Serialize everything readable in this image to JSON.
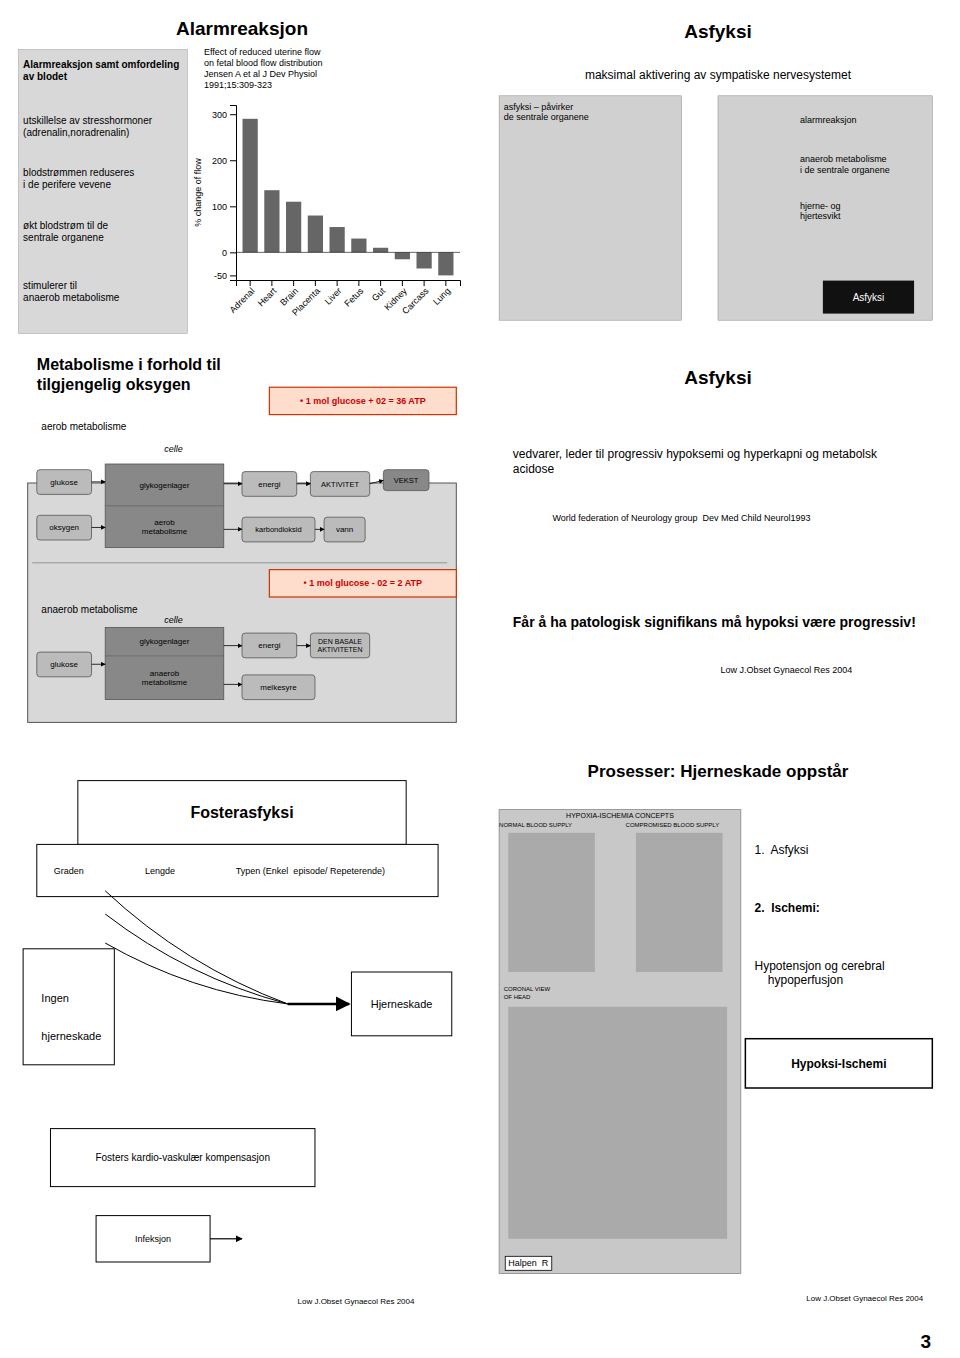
{
  "chart_data": {
    "type": "bar",
    "title": "Effect of reduced uterine flow\non fetal blood flow distribution\nJensen A et al J Dev Physiol\n1991;15:309-323",
    "ylabel": "% change of flow",
    "categories": [
      "Adrenal",
      "Heart",
      "Brain",
      "Placenta",
      "Liver",
      "Fetus",
      "Gut",
      "Kidney",
      "Carcass",
      "Lung"
    ],
    "values": [
      290,
      135,
      110,
      80,
      55,
      30,
      10,
      -15,
      -35,
      -50
    ],
    "color": "#666666",
    "ylim": [
      -60,
      320
    ],
    "yticks": [
      -50,
      0,
      100,
      200,
      300
    ],
    "grid": false,
    "annotations": [
      "Alarmreaksjon",
      "Alarmreaksjon samt omfordeling av blodet",
      "utskillelse av stresshormoner\n(adrenalin,noradrenalin)",
      "blodstrømmen reduseres\ni de perifere vevene",
      "økt blodstrøm til de\nsentrale organene",
      "stimulerer til\nanaerob metabolisme",
      "Asfyksi",
      "maksimal aktivering av sympatiske nervesystemet",
      "asfyksi – påvirker\nde sentrale organene",
      "alarmreaksjon",
      "anaerob metabolisme\ni de sentrale organene",
      "hjerne- og\nhjertesvikt",
      "Asfyksi",
      "Metabolisme i forhold til\ntilgjengelig oksygen",
      "• 1 mol glucose + 02 = 36 ATP",
      "aerob metabolisme",
      "celle",
      "glykogenlager",
      "aerob\nmetabolisme",
      "glukose",
      "oksygen",
      "energi",
      "AKTIVITET",
      "VEKST",
      "karbondioksid",
      "vann",
      "• 1 mol glucose - 02 = 2 ATP",
      "anaerob metabolisme",
      "celle",
      "glykogenlager",
      "anaerob\nmetabolisme",
      "glukose",
      "energi",
      "DEN BASALE\nAKTIVITETEN",
      "melkesyre",
      "Asfyksi",
      "vedvarer, leder til progressiv hypoksemi og hyperkapni og metabolsk\nacidose",
      "World federation of Neurology group  Dev Med Child Neurol1993",
      "Får å ha patologisk signifikans må hypoksi være progressiv!",
      "Low J.Obset Gynaecol Res 2004",
      "Fosterasfyksi",
      "Graden",
      "Lengde",
      "Typen (Enkel  episode/ Repeterende)",
      "Ingen",
      "hjerneskade",
      "Hjerneskade",
      "Fosters kardio-vaskulær kompensasjon",
      "Infeksjon",
      "Low J.Obset Gynaecol Res 2004",
      "Prosesser: Hjerneskade oppstår",
      "HYPOXIA-ISCHEMIA CONCEPTS",
      "NORMAL BLOOD SUPPLY",
      "COMPROMISED BLOOD SUPPLY",
      "CORONAL VIEW\nOF HEAD",
      "Halpen  R",
      "1.  Asfyksi",
      "2.  Ischemi:",
      "Hypotensjon og cerebral\n    hypoperfusjon",
      "Hypoksi-Ischemi",
      "Low J.Obset Gynaecol Res 2004",
      "3"
    ]
  }
}
